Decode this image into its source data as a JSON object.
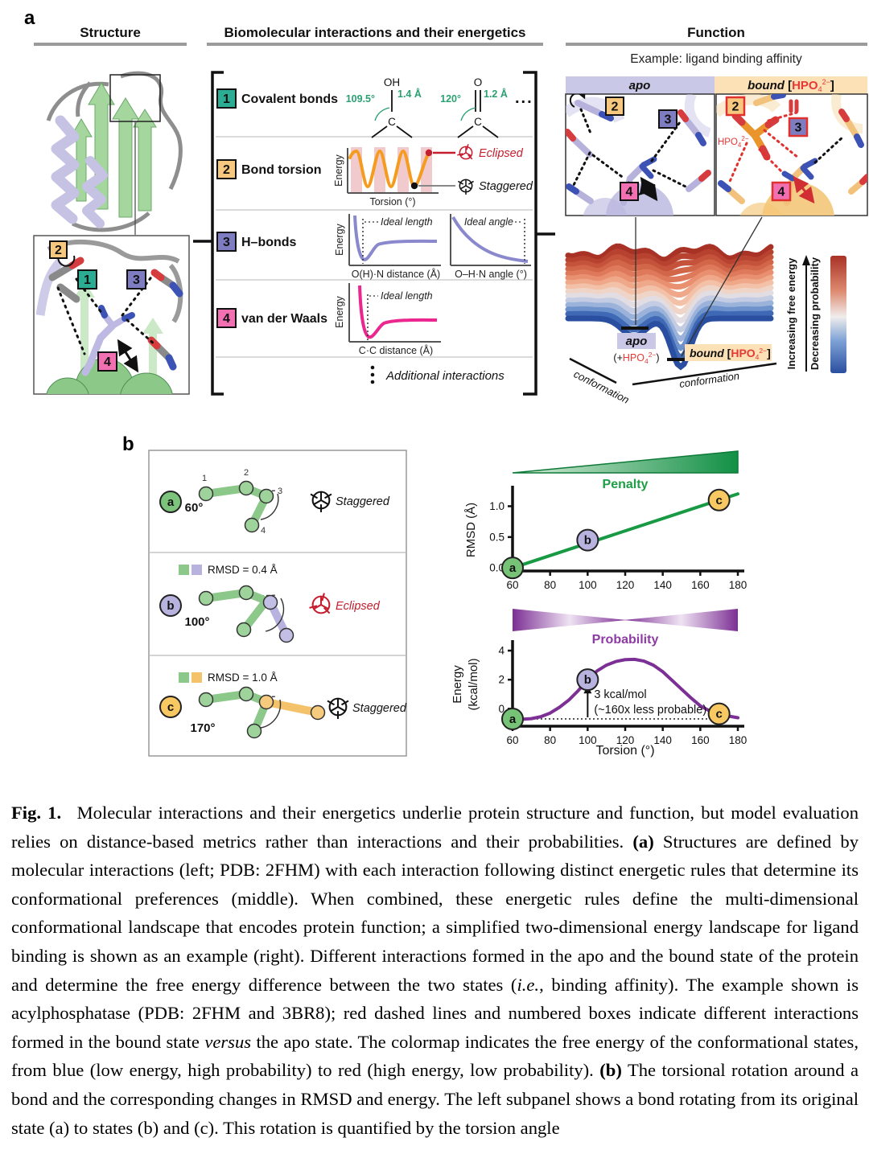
{
  "labels": {
    "a": "a",
    "b": "b"
  },
  "panel_a": {
    "columns": {
      "structure": "Structure",
      "interactions": "Biomolecular interactions and their energetics",
      "function": "Function"
    },
    "interactions": {
      "rows": [
        {
          "num": "1",
          "label": "Covalent bonds",
          "color": "#2CAD93",
          "d1": {
            "top": "OH",
            "center": "C",
            "angle": "109.5°",
            "len": "1.4 Å"
          },
          "d2": {
            "top": "O",
            "center": "C",
            "angle": "120°",
            "len": "1.2 Å"
          },
          "dots": "..."
        },
        {
          "num": "2",
          "label": "Bond torsion",
          "color": "#F6C77E",
          "plot": {
            "ylabel": "Energy",
            "xlabel": "Torsion (°)"
          },
          "eclipsed": "Eclipsed",
          "staggered": "Staggered"
        },
        {
          "num": "3",
          "label": "H–bonds",
          "color": "#7E7DC2",
          "plot1": {
            "ylabel": "Energy",
            "xlabel": "O(H)·N distance (Å)",
            "ann": "Ideal length"
          },
          "plot2": {
            "xlabel": "O–H·N angle (°)",
            "ann": "Ideal angle"
          }
        },
        {
          "num": "4",
          "label": "van der Waals",
          "color": "#F070B1",
          "plot": {
            "ylabel": "Energy",
            "xlabel": "C·C distance (Å)",
            "ann": "Ideal length"
          }
        }
      ],
      "more": "Additional interactions"
    },
    "function": {
      "subtitle": "Example: ligand binding affinity",
      "apo_label": "apo",
      "bound_label": "bound ",
      "lb": "[",
      "rb": "]",
      "ligand": {
        "pre": "HPO",
        "sub": "4",
        "sup": "2−"
      },
      "plus_open": "(+",
      "plus_close": ")",
      "landscape": {
        "xlabel_left": "conformation",
        "xlabel_right": "conformation"
      },
      "colorbar": {
        "label_energy": "Increasing free energy",
        "label_prob": "Decreasing probability"
      }
    }
  },
  "panel_b": {
    "atoms": [
      "1",
      "2",
      "3",
      "4"
    ],
    "colors": {
      "green": "#8CC88A",
      "lavender": "#B8B3DE",
      "orange": "#F5C26C"
    },
    "states": [
      {
        "id": "a",
        "angle": "60°",
        "conformation": "Staggered",
        "color": "#7CC47C"
      },
      {
        "id": "b",
        "angle": "100°",
        "conformation": "Eclipsed",
        "color": "#B8B3DE",
        "rmsd_legend": "RMSD = 0.4 Å"
      },
      {
        "id": "c",
        "angle": "170°",
        "conformation": "Staggered",
        "color": "#F8C963",
        "rmsd_legend": "RMSD = 1.0 Å"
      }
    ]
  },
  "chart_data": [
    {
      "id": "rmsd-vs-torsion",
      "type": "line",
      "title": "Penalty",
      "title_color": "#1E9E45",
      "xlabel": "",
      "ylabel": "RMSD (Å)",
      "xlim": [
        60,
        180
      ],
      "ylim": [
        -0.05,
        1.28
      ],
      "xticks": [
        60,
        80,
        100,
        120,
        140,
        160,
        180
      ],
      "xtick_labels": [
        "60",
        "80",
        "100",
        "120",
        "140",
        "160",
        "180"
      ],
      "yticks": [
        0.0,
        0.5,
        1.0
      ],
      "ytick_labels": [
        "0.0",
        "0.5",
        "1.0"
      ],
      "grid": false,
      "line_color": "#189A44",
      "series": [
        {
          "name": "RMSD penalty",
          "x": [
            60,
            180
          ],
          "y": [
            0.0,
            1.2
          ]
        }
      ],
      "points": [
        {
          "label": "a",
          "x": 60,
          "y": 0.0,
          "color": "#76C276"
        },
        {
          "label": "b",
          "x": 100,
          "y": 0.45,
          "color": "#B8B3DE"
        },
        {
          "label": "c",
          "x": 170,
          "y": 1.1,
          "color": "#F8C963"
        }
      ]
    },
    {
      "id": "energy-vs-torsion",
      "type": "line",
      "title": "Probability",
      "title_color": "#8E3AA4",
      "xlabel": "Torsion (°)",
      "ylabel": "Energy (kcal/mol)",
      "ylabel_lines": [
        "Energy",
        "(kcal/mol)"
      ],
      "xlim": [
        60,
        180
      ],
      "ylim": [
        -1.2,
        4.5
      ],
      "xticks": [
        60,
        80,
        100,
        120,
        140,
        160,
        180
      ],
      "xtick_labels": [
        "60",
        "80",
        "100",
        "120",
        "140",
        "160",
        "180"
      ],
      "yticks": [
        0,
        2,
        4
      ],
      "ytick_labels": [
        "0",
        "2",
        "4"
      ],
      "grid": false,
      "line_color": "#7C2F94",
      "series": [
        {
          "name": "Torsional energy",
          "x": [
            60,
            65,
            70,
            75,
            80,
            85,
            90,
            95,
            100,
            105,
            110,
            115,
            120,
            125,
            130,
            135,
            140,
            145,
            150,
            155,
            160,
            165,
            170,
            175,
            180
          ],
          "y": [
            -0.7,
            -0.72,
            -0.68,
            -0.55,
            -0.3,
            0.1,
            0.6,
            1.25,
            2.0,
            2.6,
            3.0,
            3.25,
            3.38,
            3.4,
            3.28,
            3.0,
            2.55,
            1.95,
            1.35,
            0.75,
            0.2,
            -0.15,
            -0.35,
            -0.5,
            -0.62
          ]
        }
      ],
      "points": [
        {
          "label": "a",
          "x": 60,
          "y": -0.7,
          "color": "#76C276"
        },
        {
          "label": "b",
          "x": 100,
          "y": 2.0,
          "color": "#B8B3DE"
        },
        {
          "label": "c",
          "x": 170,
          "y": -0.35,
          "color": "#F8C963"
        }
      ],
      "baseline": {
        "y": -0.7,
        "x_to": 170
      },
      "annotation": {
        "x": 100,
        "y_from": -0.7,
        "y_to": 1.5,
        "lines": [
          "3 kcal/mol",
          "(~160x less probable)"
        ]
      }
    }
  ],
  "caption": {
    "segments": [
      {
        "t": "Fig. 1.",
        "b": 1
      },
      {
        "t": "  Molecular interactions and their energetics underlie protein structure and function, but model evaluation relies on distance-based metrics rather than interactions and their probabilities. "
      },
      {
        "t": "(a)",
        "b": 1
      },
      {
        "t": " Structures are defined by molecular interactions (left; PDB: 2FHM) with each interaction following distinct energetic rules that determine its conformational preferences (middle). When combined, these energetic rules define the multi-dimensional conformational landscape that encodes protein function; a simplified two-dimensional energy landscape for ligand binding is shown as an example (right). Different interactions formed in the apo and the bound state of the protein and determine the free energy difference between the two states ("
      },
      {
        "t": "i.e.",
        "i": 1
      },
      {
        "t": ", binding affinity). The example shown is acylphosphatase (PDB: 2FHM and 3BR8); red dashed lines and numbered boxes indicate different interactions formed in the bound state "
      },
      {
        "t": "versus",
        "i": 1
      },
      {
        "t": " the apo state. The colormap indicates the free energy of the conformational states, from blue (low energy, high probability) to red (high energy, low probability). "
      },
      {
        "t": "(b)",
        "b": 1
      },
      {
        "t": " The torsional rotation around a bond and the corresponding changes in RMSD and energy. The left subpanel shows a bond rotating from its original state (a) to states (b) and (c). This rotation is quantified by the torsion angle"
      }
    ]
  }
}
